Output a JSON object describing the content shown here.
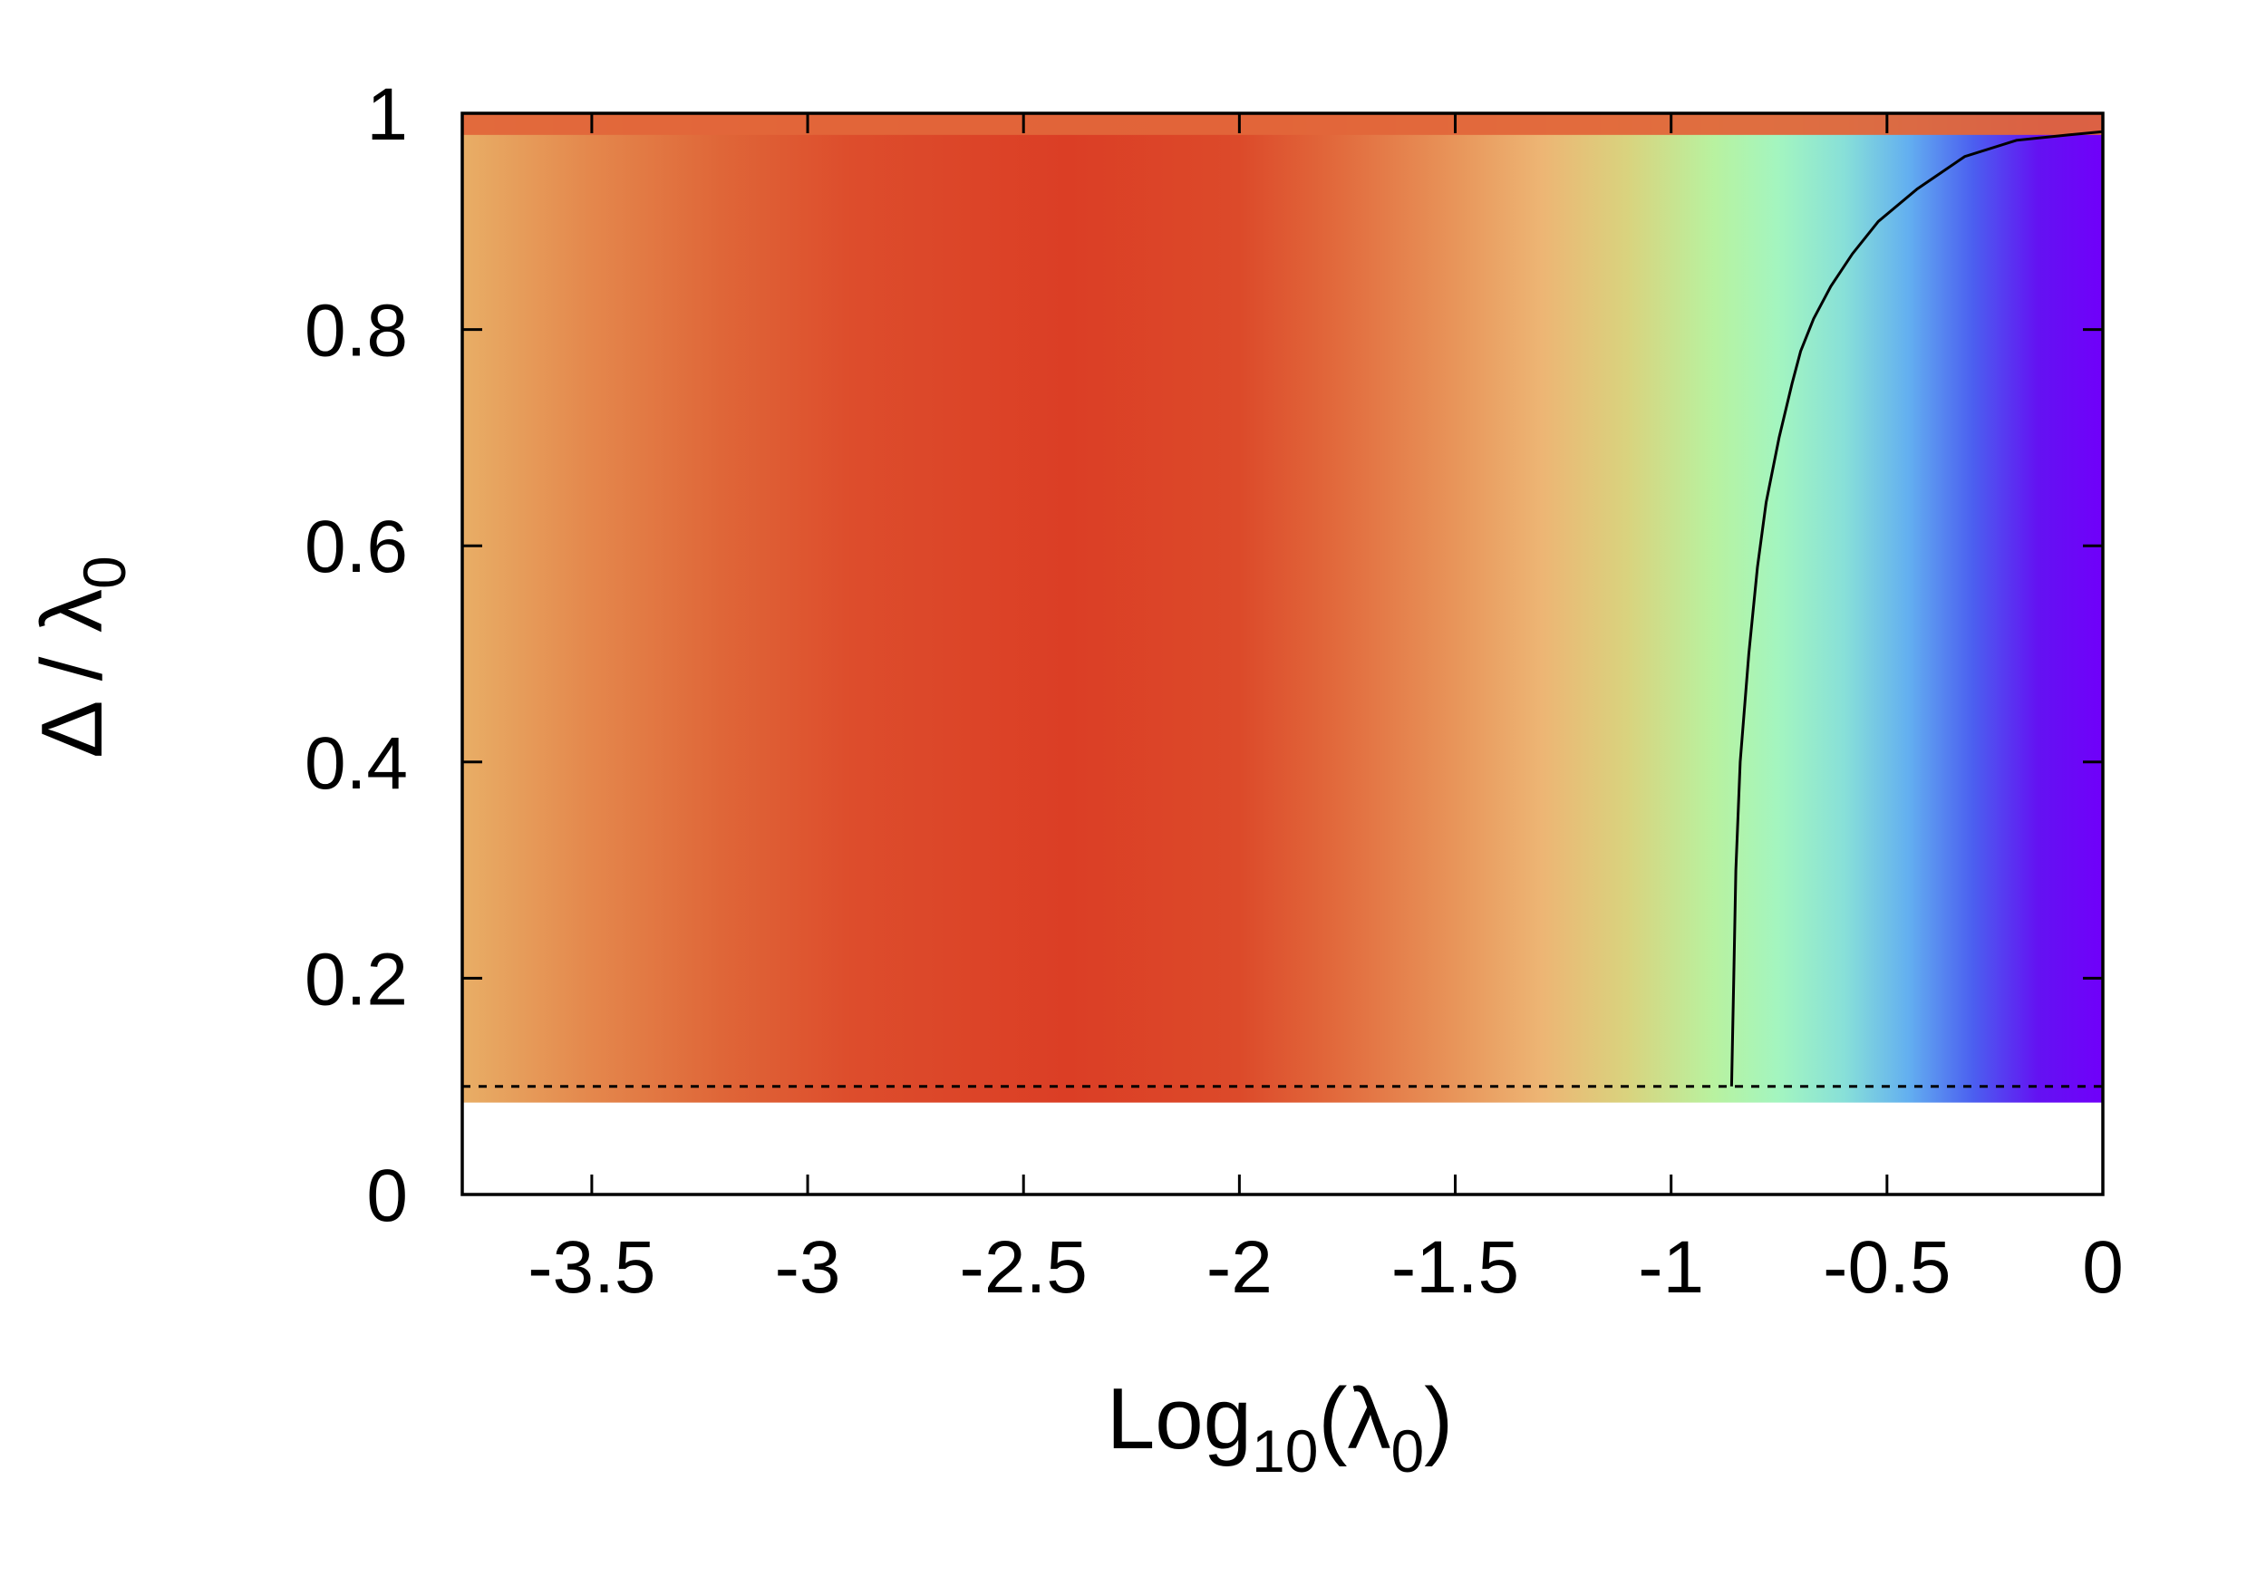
{
  "chart_data": {
    "type": "heatmap",
    "title": "",
    "xlabel": {
      "main": "Log",
      "sub": "10",
      "open": "(λ",
      "sub2": "0",
      "close": ")"
    },
    "ylabel": {
      "main": "Δ / λ",
      "sub": "0"
    },
    "xlim": [
      -3.8,
      0
    ],
    "ylim": [
      0,
      1
    ],
    "x_ticks": [
      -3.5,
      -3,
      -2.5,
      -2,
      -1.5,
      -1,
      -0.5,
      0
    ],
    "x_tick_labels": [
      "-3.5",
      "-3",
      "-2.5",
      "-2",
      "-1.5",
      "-1",
      "-0.5",
      "0"
    ],
    "y_ticks": [
      0,
      0.2,
      0.4,
      0.6,
      0.8,
      1
    ],
    "y_tick_labels": [
      "0",
      "0.2",
      "0.4",
      "0.6",
      "0.8",
      "1"
    ],
    "heatmap_y_range": [
      0.085,
      1
    ],
    "top_band_y_range": [
      0.98,
      1
    ],
    "colormap": [
      {
        "x": -3.8,
        "color": "#e8ae66"
      },
      {
        "x": -3.5,
        "color": "#e4874c"
      },
      {
        "x": -3.2,
        "color": "#df6638"
      },
      {
        "x": -2.9,
        "color": "#dd4d2c"
      },
      {
        "x": -2.4,
        "color": "#db3e25"
      },
      {
        "x": -2.0,
        "color": "#dc4a2a"
      },
      {
        "x": -1.8,
        "color": "#e1663a"
      },
      {
        "x": -1.5,
        "color": "#e8955a"
      },
      {
        "x": -1.3,
        "color": "#edb574"
      },
      {
        "x": -1.1,
        "color": "#d9d37e"
      },
      {
        "x": -0.9,
        "color": "#b8f2a0"
      },
      {
        "x": -0.75,
        "color": "#a3f5c0"
      },
      {
        "x": -0.6,
        "color": "#88e0d8"
      },
      {
        "x": -0.45,
        "color": "#63aff0"
      },
      {
        "x": -0.3,
        "color": "#4b5ff0"
      },
      {
        "x": -0.15,
        "color": "#6412f2"
      },
      {
        "x": 0,
        "color": "#7000fa"
      }
    ],
    "top_band_color": "#e1663a",
    "series": [
      {
        "type": "line",
        "style": "solid",
        "x": [
          -0.86,
          -0.855,
          -0.85,
          -0.84,
          -0.82,
          -0.8,
          -0.78,
          -0.75,
          -0.72,
          -0.7,
          -0.67,
          -0.63,
          -0.58,
          -0.52,
          -0.43,
          -0.32,
          -0.2,
          -0.08,
          0
        ],
        "y": [
          0.1,
          0.2,
          0.3,
          0.4,
          0.5,
          0.58,
          0.64,
          0.7,
          0.75,
          0.78,
          0.81,
          0.84,
          0.87,
          0.9,
          0.93,
          0.96,
          0.975,
          0.98,
          0.983
        ]
      },
      {
        "type": "line",
        "style": "dashed",
        "x": [
          -3.8,
          0
        ],
        "y": [
          0.1,
          0.1
        ]
      }
    ]
  }
}
